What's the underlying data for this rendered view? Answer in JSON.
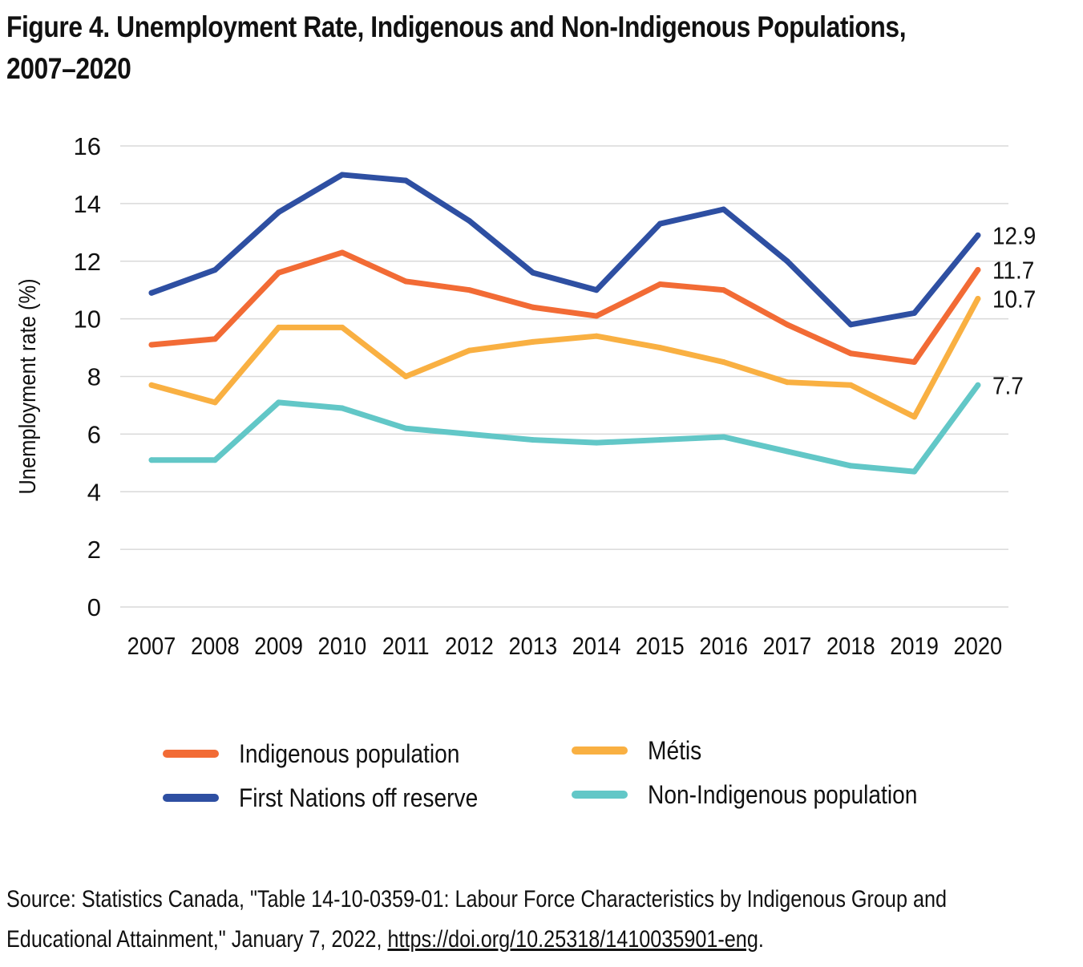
{
  "title": {
    "line1": "Figure 4. Unemployment Rate, Indigenous and Non-Indigenous Populations,",
    "line2": "2007–2020"
  },
  "chart_data": {
    "type": "line",
    "title": "Figure 4. Unemployment Rate, Indigenous and Non-Indigenous Populations, 2007–2020",
    "xlabel": "",
    "ylabel": "Unemployment rate (%)",
    "ylim": [
      0,
      16
    ],
    "yticks": [
      0,
      2,
      4,
      6,
      8,
      10,
      12,
      14,
      16
    ],
    "grid": true,
    "categories": [
      "2007",
      "2008",
      "2009",
      "2010",
      "2011",
      "2012",
      "2013",
      "2014",
      "2015",
      "2016",
      "2017",
      "2018",
      "2019",
      "2020"
    ],
    "series": [
      {
        "name": "First Nations off reserve",
        "color": "#2e4fa2",
        "values": [
          10.9,
          11.7,
          13.7,
          15.0,
          14.8,
          13.4,
          11.6,
          11.0,
          13.3,
          13.8,
          12.0,
          9.8,
          10.2,
          12.9
        ],
        "end_label": "12.9"
      },
      {
        "name": "Indigenous population",
        "color": "#f26b35",
        "values": [
          9.1,
          9.3,
          11.6,
          12.3,
          11.3,
          11.0,
          10.4,
          10.1,
          11.2,
          11.0,
          9.8,
          8.8,
          8.5,
          11.7
        ],
        "end_label": "11.7"
      },
      {
        "name": "Métis",
        "color": "#f9b042",
        "values": [
          7.7,
          7.1,
          9.7,
          9.7,
          8.0,
          8.9,
          9.2,
          9.4,
          9.0,
          8.5,
          7.8,
          7.7,
          6.6,
          10.7
        ],
        "end_label": "10.7"
      },
      {
        "name": "Non-Indigenous population",
        "color": "#62c7c7",
        "values": [
          5.1,
          5.1,
          7.1,
          6.9,
          6.2,
          6.0,
          5.8,
          5.7,
          5.8,
          5.9,
          5.4,
          4.9,
          4.7,
          7.7
        ],
        "end_label": "7.7"
      }
    ],
    "legend": {
      "placement": "bottom",
      "items": [
        "Indigenous population",
        "First Nations off reserve",
        "Métis",
        "Non-Indigenous population"
      ]
    }
  },
  "source": {
    "text": "Source: Statistics Canada, \"Table 14-10-0359-01: Labour Force Characteristics by Indigenous Group and Educational Attainment,\" January 7, 2022, ",
    "link": "https://doi.org/10.25318/1410035901-eng",
    "suffix": "."
  }
}
